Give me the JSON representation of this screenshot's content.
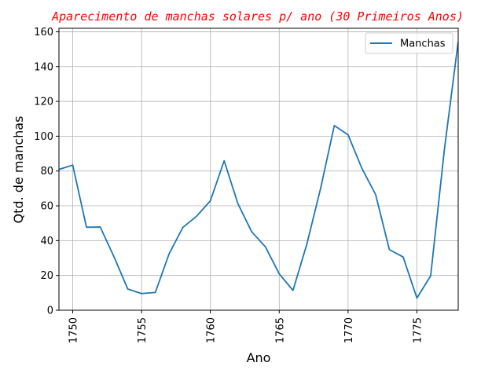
{
  "chart_data": {
    "type": "line",
    "title": "Aparecimento de manchas solares p/ ano (30 Primeiros Anos)",
    "title_color": "#ff0000",
    "xlabel": "Ano",
    "ylabel": "Qtd. de manchas",
    "xlim": [
      1749,
      1778
    ],
    "ylim": [
      0,
      162
    ],
    "xticks": [
      1750,
      1755,
      1760,
      1765,
      1770,
      1775
    ],
    "xtick_labels": [
      "1750",
      "1755",
      "1760",
      "1765",
      "1770",
      "1775"
    ],
    "yticks": [
      0,
      20,
      40,
      60,
      80,
      100,
      120,
      140,
      160
    ],
    "ytick_labels": [
      "0",
      "20",
      "40",
      "60",
      "80",
      "100",
      "120",
      "140",
      "160"
    ],
    "grid": true,
    "legend_position": "top-right",
    "series": [
      {
        "name": "Manchas",
        "color": "#1f77b4",
        "x": [
          1749,
          1750,
          1751,
          1752,
          1753,
          1754,
          1755,
          1756,
          1757,
          1758,
          1759,
          1760,
          1761,
          1762,
          1763,
          1764,
          1765,
          1766,
          1767,
          1768,
          1769,
          1770,
          1771,
          1772,
          1773,
          1774,
          1775,
          1776,
          1777,
          1778
        ],
        "values": [
          80.9,
          83.4,
          47.7,
          47.8,
          30.7,
          12.2,
          9.6,
          10.2,
          32.4,
          47.6,
          54.0,
          62.9,
          85.9,
          61.2,
          45.1,
          36.4,
          20.9,
          11.4,
          37.8,
          69.8,
          106.1,
          100.8,
          81.6,
          66.5,
          34.8,
          30.6,
          7.0,
          19.8,
          92.5,
          154.4
        ]
      }
    ]
  }
}
